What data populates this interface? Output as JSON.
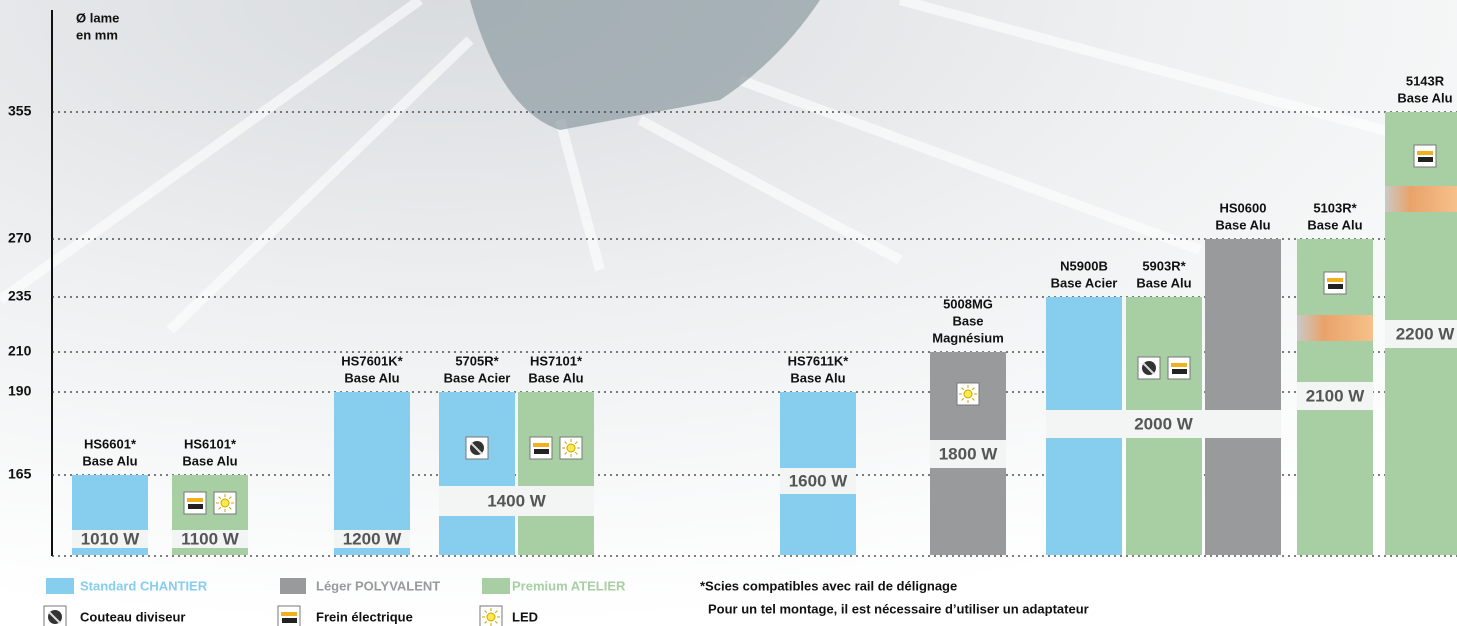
{
  "chart_data": {
    "type": "bar",
    "y_label": [
      "Ø lame",
      "en mm"
    ],
    "yticks": [
      165,
      190,
      210,
      235,
      270,
      355
    ],
    "series": [
      {
        "name": "Standard CHANTIER",
        "color": "#87cdee"
      },
      {
        "name": "Léger POLYVALENT",
        "color": "#999a9c"
      },
      {
        "name": "Premium ATELIER",
        "color": "#a7cfa3"
      }
    ],
    "features": [
      "Couteau diviseur",
      "Frein électrique",
      "LED"
    ],
    "products": [
      {
        "label": [
          "HS6601*",
          "Base Alu"
        ],
        "diameter": 165,
        "series": 0,
        "features": [],
        "power": "1010 W"
      },
      {
        "label": [
          "HS6101*",
          "Base Alu"
        ],
        "diameter": 165,
        "series": 2,
        "features": [
          1,
          2
        ],
        "power": "1100 W"
      },
      {
        "label": [
          "HS7601K*",
          "Base Alu"
        ],
        "diameter": 190,
        "series": 0,
        "features": [],
        "power": "1200 W"
      },
      {
        "label": [
          "5705R*",
          "Base Acier"
        ],
        "diameter": 190,
        "series": 0,
        "features": [
          0
        ],
        "power": "1400 W"
      },
      {
        "label": [
          "HS7101*",
          "Base Alu"
        ],
        "diameter": 190,
        "series": 2,
        "features": [
          1,
          2
        ]
      },
      {
        "label": [
          "HS7611K*",
          "Base Alu"
        ],
        "diameter": 190,
        "series": 0,
        "features": [],
        "power": "1600 W"
      },
      {
        "label": [
          "5008MG",
          "Base",
          "Magnésium"
        ],
        "diameter": 210,
        "series": 1,
        "features": [
          2
        ],
        "power": "1800 W"
      },
      {
        "label": [
          "N5900B",
          "Base Acier"
        ],
        "diameter": 235,
        "series": 0,
        "features": [],
        "power": "2000 W"
      },
      {
        "label": [
          "5903R*",
          "Base Alu"
        ],
        "diameter": 235,
        "series": 2,
        "features": [
          0,
          1
        ]
      },
      {
        "label": [
          "HS0600",
          "Base Alu"
        ],
        "diameter": 270,
        "series": 1,
        "features": []
      },
      {
        "label": [
          "5103R*",
          "Base Alu"
        ],
        "diameter": 270,
        "series": 2,
        "features": [
          1
        ],
        "power": "2100 W"
      },
      {
        "label": [
          "5143R",
          "Base Alu"
        ],
        "diameter": 355,
        "series": 2,
        "features": [
          1
        ],
        "power": "2200 W"
      }
    ],
    "footnote": [
      "*Scies compatibles avec rail de délignage",
      "Pour un tel montage, il est nécessaire d’utiliser un adaptateur"
    ]
  }
}
